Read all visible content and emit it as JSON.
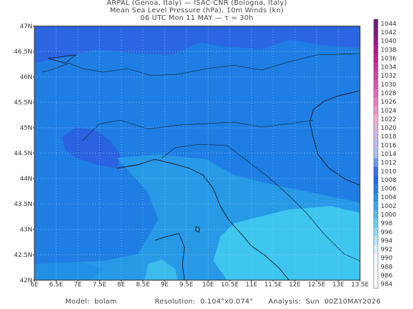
{
  "header": {
    "lines": [
      "ARPAL (Genoa, Italy)  —  ISAC-CNR (Bologna, Italy)",
      "Mean Sea Level Pressure (hPa), 10m Winds (kn)",
      "06 UTC Mon 11 MAY  —  τ = 30h"
    ]
  },
  "map": {
    "lat_labels": [
      "47N",
      "46.5N",
      "46N",
      "45.5N",
      "45N",
      "44.5N",
      "44N",
      "43.5N",
      "43N",
      "42.5N",
      "42N"
    ],
    "lon_labels": [
      "6E",
      "6.5E",
      "7E",
      "7.5E",
      "8E",
      "8.5E",
      "9E",
      "9.5E",
      "10E",
      "10.5E",
      "11E",
      "11.5E",
      "12E",
      "12.5E",
      "13E",
      "13.5E"
    ]
  },
  "colorbar": {
    "labels": [
      1044,
      1042,
      1040,
      1038,
      1036,
      1034,
      1032,
      1030,
      1028,
      1026,
      1024,
      1022,
      1020,
      1018,
      1016,
      1014,
      1012,
      1010,
      1008,
      1006,
      1004,
      1002,
      1000,
      998,
      996,
      994,
      992,
      990,
      988,
      986,
      984
    ]
  },
  "footer": {
    "model": "Model:  bolam",
    "resolution": "Resolution:  0.104°x0.074°",
    "analysis": "Analysis:  Sun  00Z10MAY2026"
  }
}
